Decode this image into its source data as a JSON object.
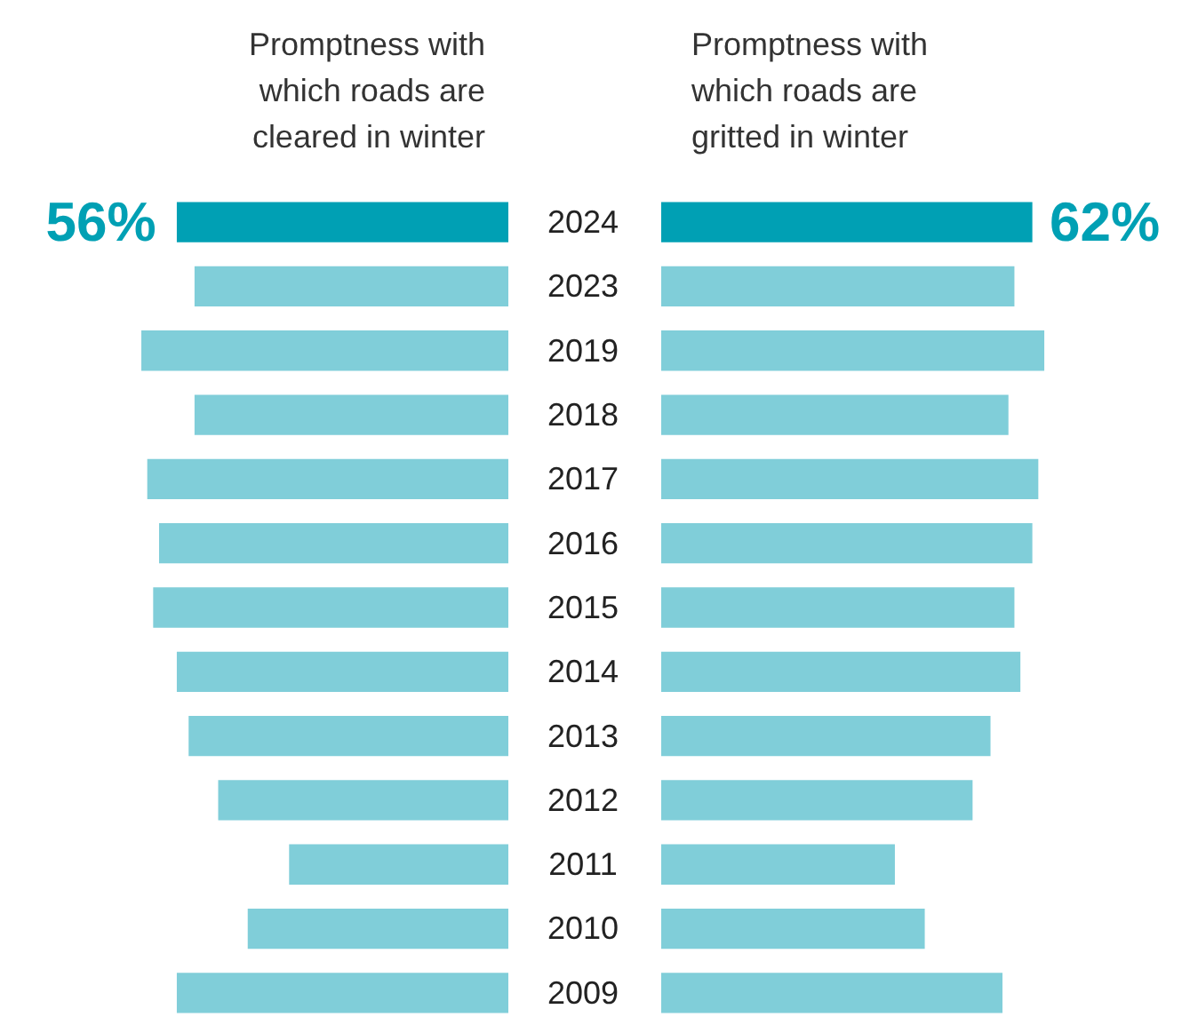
{
  "chart_data": [
    {
      "type": "bar",
      "orientation": "horizontal",
      "title": "Promptness with which roads are cleared in winter",
      "categories": [
        "2024",
        "2023",
        "2019",
        "2018",
        "2017",
        "2016",
        "2015",
        "2014",
        "2013",
        "2012",
        "2011",
        "2010",
        "2009"
      ],
      "values": [
        56,
        53,
        62,
        53,
        61,
        59,
        60,
        56,
        54,
        49,
        37,
        44,
        56
      ],
      "colors": [
        "#00a0b4",
        "#80ced9",
        "#80ced9",
        "#80ced9",
        "#80ced9",
        "#80ced9",
        "#80ced9",
        "#80ced9",
        "#80ced9",
        "#80ced9",
        "#80ced9",
        "#80ced9",
        "#80ced9"
      ],
      "value_labels": [
        "56%",
        null,
        null,
        null,
        null,
        null,
        null,
        null,
        null,
        null,
        null,
        null,
        null
      ],
      "tick_labels": "y"
    },
    {
      "type": "bar",
      "orientation": "horizontal",
      "title": "Promptness with which roads are gritted in winter",
      "categories": [
        "2024",
        "2023",
        "2019",
        "2018",
        "2017",
        "2016",
        "2015",
        "2014",
        "2013",
        "2012",
        "2011",
        "2010",
        "2009"
      ],
      "values": [
        62,
        59,
        64,
        58,
        63,
        62,
        59,
        60,
        55,
        52,
        39,
        44,
        57
      ],
      "colors": [
        "#00a0b4",
        "#80ced9",
        "#80ced9",
        "#80ced9",
        "#80ced9",
        "#80ced9",
        "#80ced9",
        "#80ced9",
        "#80ced9",
        "#80ced9",
        "#80ced9",
        "#80ced9",
        "#80ced9"
      ],
      "value_labels": [
        "62%",
        null,
        null,
        null,
        null,
        null,
        null,
        null,
        null,
        null,
        null,
        null,
        null
      ],
      "tick_labels": false
    }
  ]
}
